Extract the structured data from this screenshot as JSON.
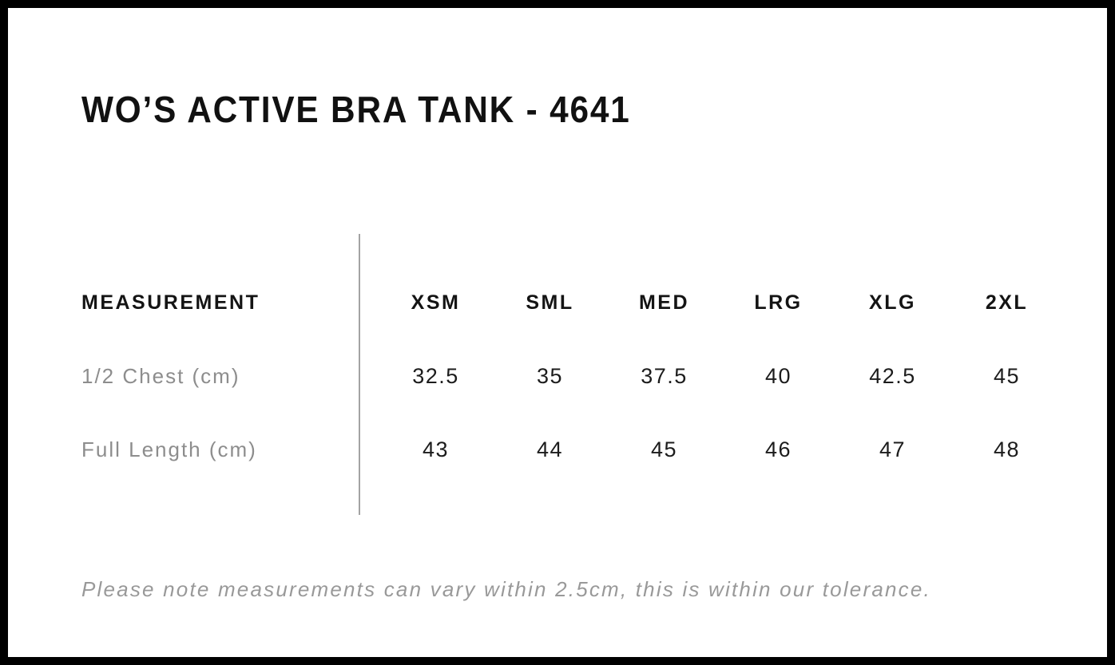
{
  "page": {
    "title": "WO’S ACTIVE BRA TANK - 4641",
    "note": "Please note measurements can vary within 2.5cm, this is within our tolerance."
  },
  "table": {
    "header": [
      "MEASUREMENT",
      "XSM",
      "SML",
      "MED",
      "LRG",
      "XLG",
      "2XL"
    ],
    "rows": [
      {
        "label": "1/2 Chest (cm)",
        "values": [
          "32.5",
          "35",
          "37.5",
          "40",
          "42.5",
          "45"
        ]
      },
      {
        "label": "Full Length (cm)",
        "values": [
          "43",
          "44",
          "45",
          "46",
          "47",
          "48"
        ]
      }
    ]
  },
  "colors": {
    "border_black": "#000000",
    "title_black": "#111111",
    "header_black": "#141414",
    "value_black": "#1c1c1c",
    "label_gray": "#8d8d8d",
    "note_gray": "#999999",
    "divider_gray": "#a3a3a3",
    "background": "#ffffff"
  }
}
